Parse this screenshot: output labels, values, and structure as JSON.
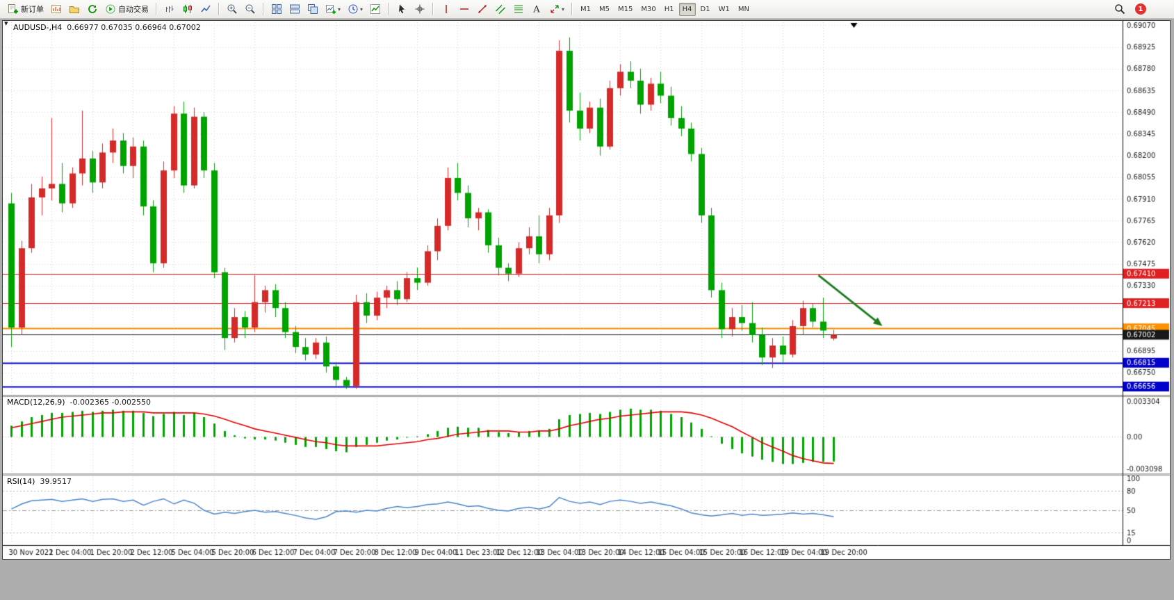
{
  "toolbar": {
    "groups": [
      {
        "items": [
          {
            "icon": "new-order",
            "name": "new-order",
            "label": "新订单"
          },
          {
            "icon": "charts",
            "name": "charts"
          },
          {
            "icon": "profiles",
            "name": "profiles"
          },
          {
            "icon": "refresh",
            "name": "refresh"
          },
          {
            "icon": "autotrading",
            "name": "auto-trading",
            "label": "自动交易"
          }
        ]
      },
      {
        "items": [
          {
            "icon": "chart-bars",
            "name": "bar-chart"
          },
          {
            "icon": "chart-candles",
            "name": "candlestick-chart"
          },
          {
            "icon": "chart-line",
            "name": "line-chart"
          }
        ]
      },
      {
        "items": [
          {
            "icon": "zoom-in",
            "name": "zoom-in"
          },
          {
            "icon": "zoom-out",
            "name": "zoom-out"
          }
        ]
      },
      {
        "items": [
          {
            "icon": "tile-windows",
            "name": "tile-windows"
          },
          {
            "icon": "window-list",
            "name": "tile-horizontally"
          },
          {
            "icon": "cascade",
            "name": "cascade-windows"
          },
          {
            "icon": "new-chart-plus",
            "name": "new-chart",
            "caret": true
          },
          {
            "icon": "clock",
            "name": "period-selector",
            "caret": true
          },
          {
            "icon": "indicators",
            "name": "indicators-list"
          }
        ]
      },
      {
        "items": [
          {
            "icon": "cursor",
            "name": "cursor-tool"
          },
          {
            "icon": "crosshair",
            "name": "crosshair-tool"
          }
        ]
      },
      {
        "items": [
          {
            "icon": "vline",
            "name": "vertical-line-tool"
          },
          {
            "icon": "hline",
            "name": "horizontal-line-tool"
          },
          {
            "icon": "trendline",
            "name": "trendline-tool"
          },
          {
            "icon": "channel",
            "name": "equidistant-channel-tool"
          },
          {
            "icon": "fibonacci",
            "name": "fibonacci-tool"
          },
          {
            "icon": "text",
            "name": "text-tool"
          },
          {
            "icon": "arrows",
            "name": "arrows-tool",
            "caret": true
          }
        ]
      }
    ],
    "timeframes": [
      "M1",
      "M5",
      "M15",
      "M30",
      "H1",
      "H4",
      "D1",
      "W1",
      "MN"
    ],
    "active_timeframe": "H4",
    "notification_count": "1"
  },
  "chart": {
    "symbol_period": "AUDUSD-,H4",
    "ohlc_text": "0.66977 0.67035 0.66964 0.67002",
    "up_color": "#d42a2a",
    "down_color": "#00a300",
    "price_axis_labels": [
      "0.69070",
      "0.68925",
      "0.68780",
      "0.68635",
      "0.68490",
      "0.68345",
      "0.68200",
      "0.68055",
      "0.67910",
      "0.67765",
      "0.67620",
      "0.67475",
      "0.67330",
      "0.67185",
      "0.67040",
      "0.66895",
      "0.66750"
    ],
    "price_lines": [
      {
        "price": 0.6741,
        "badge": "0.67410",
        "color": "#e02020",
        "width": 1
      },
      {
        "price": 0.67213,
        "badge": "0.67213",
        "color": "#e02020",
        "width": 1
      },
      {
        "price": 0.67045,
        "badge": "0.67045",
        "color": "#ff9100",
        "width": 2
      },
      {
        "price": 0.67002,
        "badge": "0.67002",
        "color": "#181818",
        "width": 1
      },
      {
        "price": 0.66815,
        "badge": "0.66815",
        "color": "#0000cc",
        "width": 2
      },
      {
        "price": 0.66656,
        "badge": "0.66656",
        "color": "#0000cc",
        "width": 2
      }
    ],
    "annotation_arrow": {
      "start_bar": 79.5,
      "start_price": 0.674,
      "end_bar": 85.8,
      "end_price": 0.6706,
      "color": "#1e7d1e"
    },
    "shift_marker_bar": 83,
    "label_every": 4,
    "time_labels": [
      "30 Nov 2022",
      "1 Dec 04:00",
      "1 Dec 20:00",
      "2 Dec 12:00",
      "5 Dec 04:00",
      "5 Dec 20:00",
      "6 Dec 12:00",
      "7 Dec 04:00",
      "7 Dec 20:00",
      "8 Dec 12:00",
      "9 Dec 04:00",
      "11 Dec 23:00",
      "12 Dec 12:00",
      "13 Dec 04:00",
      "13 Dec 20:00",
      "14 Dec 12:00",
      "15 Dec 04:00",
      "15 Dec 20:00",
      "16 Dec 12:00",
      "19 Dec 04:00",
      "19 Dec 20:00"
    ],
    "candles": [
      [
        0.6788,
        0.6795,
        0.6692,
        0.6705
      ],
      [
        0.6705,
        0.6763,
        0.67,
        0.6758
      ],
      [
        0.6758,
        0.6801,
        0.6755,
        0.6792
      ],
      [
        0.6792,
        0.6806,
        0.678,
        0.6798
      ],
      [
        0.6798,
        0.6845,
        0.679,
        0.6801
      ],
      [
        0.6801,
        0.6815,
        0.6782,
        0.6788
      ],
      [
        0.6788,
        0.6812,
        0.6785,
        0.6808
      ],
      [
        0.6808,
        0.685,
        0.68,
        0.6818
      ],
      [
        0.6818,
        0.6823,
        0.6795,
        0.6802
      ],
      [
        0.6802,
        0.6828,
        0.6798,
        0.6822
      ],
      [
        0.6822,
        0.6838,
        0.6815,
        0.683
      ],
      [
        0.683,
        0.6835,
        0.6808,
        0.6813
      ],
      [
        0.6813,
        0.6832,
        0.6805,
        0.6826
      ],
      [
        0.6826,
        0.683,
        0.678,
        0.6786
      ],
      [
        0.6786,
        0.679,
        0.6742,
        0.6748
      ],
      [
        0.6748,
        0.6816,
        0.6745,
        0.681
      ],
      [
        0.681,
        0.6853,
        0.6805,
        0.6848
      ],
      [
        0.6848,
        0.6856,
        0.6795,
        0.68
      ],
      [
        0.68,
        0.6852,
        0.6798,
        0.6846
      ],
      [
        0.6846,
        0.6849,
        0.6805,
        0.681
      ],
      [
        0.681,
        0.6815,
        0.6738,
        0.6742
      ],
      [
        0.6742,
        0.6745,
        0.669,
        0.6698
      ],
      [
        0.6698,
        0.6718,
        0.6695,
        0.6712
      ],
      [
        0.6712,
        0.6716,
        0.6698,
        0.6705
      ],
      [
        0.6705,
        0.674,
        0.6702,
        0.6722
      ],
      [
        0.6722,
        0.6733,
        0.6715,
        0.673
      ],
      [
        0.673,
        0.6734,
        0.6712,
        0.6718
      ],
      [
        0.6718,
        0.6722,
        0.6698,
        0.6702
      ],
      [
        0.6702,
        0.6706,
        0.6688,
        0.6692
      ],
      [
        0.6692,
        0.6698,
        0.6683,
        0.6687
      ],
      [
        0.6687,
        0.6698,
        0.6684,
        0.6695
      ],
      [
        0.6695,
        0.6699,
        0.6675,
        0.6679
      ],
      [
        0.6679,
        0.6682,
        0.6666,
        0.667
      ],
      [
        0.667,
        0.6672,
        0.6664,
        0.6666
      ],
      [
        0.6666,
        0.6727,
        0.6664,
        0.6722
      ],
      [
        0.6722,
        0.6728,
        0.6708,
        0.6713
      ],
      [
        0.6713,
        0.6729,
        0.671,
        0.6725
      ],
      [
        0.6725,
        0.6733,
        0.6718,
        0.673
      ],
      [
        0.673,
        0.6736,
        0.672,
        0.6724
      ],
      [
        0.6724,
        0.6742,
        0.6722,
        0.6738
      ],
      [
        0.6738,
        0.6745,
        0.673,
        0.6735
      ],
      [
        0.6735,
        0.676,
        0.6733,
        0.6756
      ],
      [
        0.6756,
        0.6778,
        0.675,
        0.6773
      ],
      [
        0.6773,
        0.6812,
        0.677,
        0.6805
      ],
      [
        0.6805,
        0.6815,
        0.679,
        0.6795
      ],
      [
        0.6795,
        0.68,
        0.6772,
        0.6778
      ],
      [
        0.6778,
        0.6785,
        0.677,
        0.6782
      ],
      [
        0.6782,
        0.6784,
        0.6755,
        0.676
      ],
      [
        0.676,
        0.6765,
        0.674,
        0.6745
      ],
      [
        0.6745,
        0.6748,
        0.6736,
        0.6741
      ],
      [
        0.6741,
        0.6762,
        0.6739,
        0.6758
      ],
      [
        0.6758,
        0.6772,
        0.6754,
        0.6766
      ],
      [
        0.6766,
        0.678,
        0.6748,
        0.6754
      ],
      [
        0.6754,
        0.6785,
        0.675,
        0.678
      ],
      [
        0.678,
        0.6897,
        0.6775,
        0.689
      ],
      [
        0.689,
        0.6899,
        0.6842,
        0.685
      ],
      [
        0.685,
        0.6862,
        0.683,
        0.6838
      ],
      [
        0.6838,
        0.6856,
        0.6835,
        0.6852
      ],
      [
        0.6852,
        0.6858,
        0.682,
        0.6826
      ],
      [
        0.6826,
        0.687,
        0.6824,
        0.6865
      ],
      [
        0.6865,
        0.6881,
        0.686,
        0.6876
      ],
      [
        0.6876,
        0.6883,
        0.6865,
        0.687
      ],
      [
        0.687,
        0.6878,
        0.6848,
        0.6854
      ],
      [
        0.6854,
        0.6872,
        0.685,
        0.6868
      ],
      [
        0.6868,
        0.6876,
        0.6855,
        0.686
      ],
      [
        0.686,
        0.6866,
        0.684,
        0.6845
      ],
      [
        0.6845,
        0.6853,
        0.6833,
        0.6838
      ],
      [
        0.6838,
        0.6842,
        0.6816,
        0.6821
      ],
      [
        0.6821,
        0.6825,
        0.6775,
        0.678
      ],
      [
        0.678,
        0.6785,
        0.6725,
        0.673
      ],
      [
        0.673,
        0.6735,
        0.6698,
        0.6704
      ],
      [
        0.6704,
        0.6718,
        0.6699,
        0.6712
      ],
      [
        0.6712,
        0.672,
        0.6703,
        0.6708
      ],
      [
        0.6708,
        0.6722,
        0.6695,
        0.67
      ],
      [
        0.67,
        0.6705,
        0.668,
        0.6685
      ],
      [
        0.6685,
        0.6698,
        0.6678,
        0.6693
      ],
      [
        0.6693,
        0.6699,
        0.6682,
        0.6687
      ],
      [
        0.6687,
        0.671,
        0.6685,
        0.6706
      ],
      [
        0.6706,
        0.6723,
        0.67,
        0.6718
      ],
      [
        0.6718,
        0.6721,
        0.6705,
        0.6709
      ],
      [
        0.6709,
        0.6725,
        0.6698,
        0.6703
      ],
      [
        0.66977,
        0.67035,
        0.66964,
        0.67002
      ]
    ]
  },
  "macd": {
    "label": "MACD(12,26,9)",
    "values_text": "-0.002365 -0.002550",
    "axis_labels": [
      "0.003304",
      "0.00",
      "-0.003098"
    ],
    "max": 0.003304,
    "min": -0.003098,
    "hist_color": "#00a300",
    "signal_color": "#e00000",
    "histogram": [
      0.001,
      0.0014,
      0.0018,
      0.002,
      0.0022,
      0.0022,
      0.0023,
      0.0024,
      0.0023,
      0.0024,
      0.0025,
      0.0024,
      0.0024,
      0.0022,
      0.0019,
      0.0021,
      0.0023,
      0.002,
      0.0022,
      0.0018,
      0.0012,
      0.0005,
      0.0001,
      -0.0002,
      -0.0003,
      -0.0003,
      -0.0004,
      -0.0006,
      -0.0008,
      -0.001,
      -0.001,
      -0.0012,
      -0.0014,
      -0.0015,
      -0.001,
      -0.0008,
      -0.0006,
      -0.0004,
      -0.0003,
      -0.0001,
      0.0,
      0.0002,
      0.0005,
      0.0008,
      0.0009,
      0.0008,
      0.0008,
      0.0006,
      0.0004,
      0.0003,
      0.0004,
      0.0005,
      0.0005,
      0.0007,
      0.0016,
      0.002,
      0.0021,
      0.0022,
      0.0021,
      0.0023,
      0.0025,
      0.0026,
      0.0025,
      0.0025,
      0.0024,
      0.0021,
      0.0018,
      0.0013,
      0.0007,
      0.0,
      -0.0007,
      -0.0012,
      -0.0016,
      -0.0019,
      -0.0022,
      -0.0024,
      -0.0026,
      -0.0026,
      -0.0025,
      -0.0024,
      -0.0024,
      -0.002365
    ],
    "signal": [
      0.0008,
      0.001,
      0.0012,
      0.0014,
      0.0016,
      0.0018,
      0.0019,
      0.002,
      0.0021,
      0.0022,
      0.0022,
      0.0023,
      0.0023,
      0.0023,
      0.0022,
      0.0022,
      0.0022,
      0.0022,
      0.0022,
      0.0021,
      0.0019,
      0.0016,
      0.0013,
      0.001,
      0.0007,
      0.0005,
      0.0003,
      0.0001,
      -0.0001,
      -0.0003,
      -0.0005,
      -0.0006,
      -0.0008,
      -0.0009,
      -0.0009,
      -0.0009,
      -0.0009,
      -0.0008,
      -0.0007,
      -0.0006,
      -0.0005,
      -0.0003,
      -0.0002,
      0.0,
      0.0002,
      0.0003,
      0.0004,
      0.0005,
      0.0005,
      0.0005,
      0.0004,
      0.0004,
      0.0005,
      0.0005,
      0.0007,
      0.001,
      0.0012,
      0.0014,
      0.0016,
      0.0017,
      0.0019,
      0.002,
      0.0021,
      0.0022,
      0.0023,
      0.0023,
      0.0023,
      0.0022,
      0.002,
      0.0017,
      0.0013,
      0.0009,
      0.0004,
      -0.0001,
      -0.0006,
      -0.001,
      -0.0014,
      -0.0018,
      -0.0021,
      -0.0023,
      -0.0025,
      -0.00255
    ]
  },
  "rsi": {
    "label": "RSI(14)",
    "value_text": "39.9517",
    "line_color": "#4a86c8",
    "axis_labels": [
      "100",
      "80",
      "50",
      "15",
      "0"
    ],
    "levels": [
      80,
      50,
      15
    ],
    "values": [
      52,
      60,
      65,
      66,
      67,
      64,
      66,
      68,
      64,
      67,
      68,
      64,
      66,
      58,
      64,
      68,
      60,
      66,
      61,
      50,
      44,
      47,
      45,
      48,
      50,
      47,
      48,
      45,
      42,
      38,
      36,
      40,
      48,
      49,
      47,
      50,
      49,
      53,
      56,
      54,
      56,
      59,
      60,
      63,
      60,
      56,
      57,
      53,
      50,
      49,
      53,
      55,
      52,
      56,
      70,
      64,
      61,
      63,
      59,
      64,
      66,
      64,
      61,
      63,
      60,
      57,
      52,
      46,
      43,
      41,
      43,
      45,
      42,
      44,
      42,
      43,
      44,
      46,
      44,
      45,
      43,
      39.9517
    ]
  }
}
